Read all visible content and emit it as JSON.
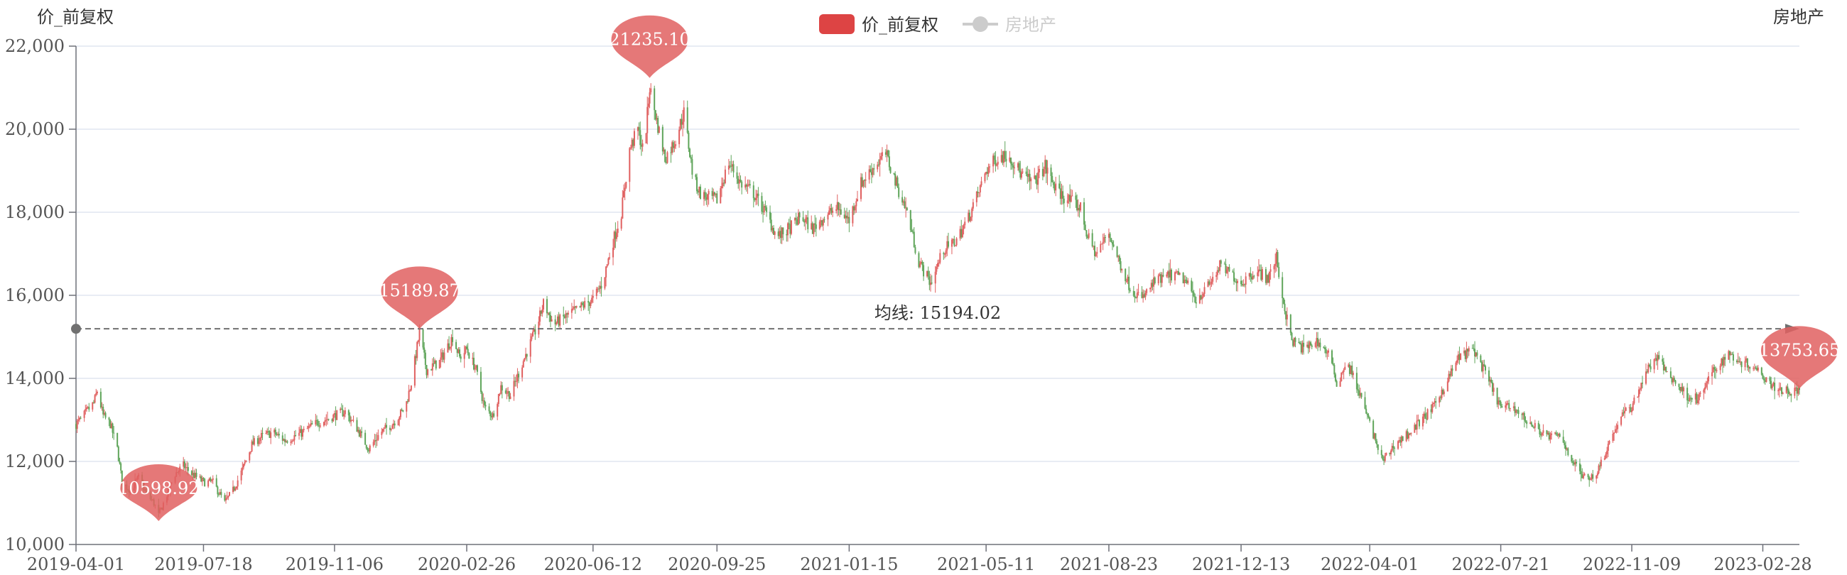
{
  "chart_data": {
    "type": "candlestick",
    "y_axis_name": "价_前复权",
    "x_axis_name": "房地产",
    "ylim": [
      10000,
      22000
    ],
    "y_ticks": [
      10000,
      12000,
      14000,
      16000,
      18000,
      20000,
      22000
    ],
    "x_range": [
      "2019-04-01",
      "2023-03-31"
    ],
    "x_ticks": [
      "2019-04-01",
      "2019-07-18",
      "2019-11-06",
      "2020-02-26",
      "2020-06-12",
      "2020-09-25",
      "2021-01-15",
      "2021-05-11",
      "2021-08-23",
      "2021-12-13",
      "2022-04-01",
      "2022-07-21",
      "2022-11-09",
      "2023-02-28"
    ],
    "grid": true,
    "legend": {
      "position": "top-center",
      "items": [
        {
          "name": "价_前复权",
          "color": "#dd4444",
          "active": true
        },
        {
          "name": "房地产",
          "color": "#cccccc",
          "active": false
        }
      ]
    },
    "colors": {
      "up": "#e06060",
      "down": "#5fa55a"
    },
    "average_line": {
      "value": 15194.02,
      "label": "均线: 15194.02"
    },
    "mark_points": [
      {
        "label": "10598.92",
        "date": "2019-06-10",
        "value": 10598.92,
        "type": "min"
      },
      {
        "label": "15189.87",
        "date": "2020-01-17",
        "value": 15189.87,
        "type": "local-max"
      },
      {
        "label": "21235.10",
        "date": "2020-07-30",
        "value": 21235.1,
        "type": "max"
      },
      {
        "label": "13753.65",
        "date": "2023-03-31",
        "value": 13753.65,
        "type": "last"
      }
    ],
    "series_anchors": [
      [
        "2019-04-01",
        12900
      ],
      [
        "2019-04-05",
        13000
      ],
      [
        "2019-04-10",
        13200
      ],
      [
        "2019-04-16",
        13400
      ],
      [
        "2019-04-19",
        13700
      ],
      [
        "2019-04-24",
        13100
      ],
      [
        "2019-04-30",
        12900
      ],
      [
        "2019-05-06",
        12300
      ],
      [
        "2019-05-10",
        11500
      ],
      [
        "2019-05-17",
        11300
      ],
      [
        "2019-05-24",
        11600
      ],
      [
        "2019-05-31",
        11200
      ],
      [
        "2019-06-06",
        11000
      ],
      [
        "2019-06-10",
        10700
      ],
      [
        "2019-06-17",
        11200
      ],
      [
        "2019-06-24",
        11700
      ],
      [
        "2019-07-01",
        11900
      ],
      [
        "2019-07-08",
        11700
      ],
      [
        "2019-07-18",
        11500
      ],
      [
        "2019-07-26",
        11500
      ],
      [
        "2019-08-05",
        11000
      ],
      [
        "2019-08-12",
        11300
      ],
      [
        "2019-08-20",
        11800
      ],
      [
        "2019-08-28",
        12400
      ],
      [
        "2019-09-05",
        12600
      ],
      [
        "2019-09-15",
        12700
      ],
      [
        "2019-09-25",
        12500
      ],
      [
        "2019-10-10",
        12700
      ],
      [
        "2019-10-20",
        12900
      ],
      [
        "2019-11-06",
        13100
      ],
      [
        "2019-11-15",
        13200
      ],
      [
        "2019-11-25",
        12800
      ],
      [
        "2019-12-05",
        12300
      ],
      [
        "2019-12-15",
        12700
      ],
      [
        "2019-12-25",
        12900
      ],
      [
        "2020-01-05",
        13300
      ],
      [
        "2020-01-10",
        13900
      ],
      [
        "2020-01-17",
        15100
      ],
      [
        "2020-01-23",
        14200
      ],
      [
        "2020-02-03",
        14400
      ],
      [
        "2020-02-14",
        15000
      ],
      [
        "2020-02-20",
        14500
      ],
      [
        "2020-02-26",
        14700
      ],
      [
        "2020-03-05",
        14200
      ],
      [
        "2020-03-12",
        13300
      ],
      [
        "2020-03-19",
        13100
      ],
      [
        "2020-03-26",
        13800
      ],
      [
        "2020-04-03",
        13600
      ],
      [
        "2020-04-15",
        14500
      ],
      [
        "2020-04-25",
        15200
      ],
      [
        "2020-05-01",
        15800
      ],
      [
        "2020-05-10",
        15300
      ],
      [
        "2020-05-20",
        15500
      ],
      [
        "2020-06-01",
        15700
      ],
      [
        "2020-06-12",
        15900
      ],
      [
        "2020-06-20",
        16300
      ],
      [
        "2020-06-28",
        17200
      ],
      [
        "2020-07-06",
        18000
      ],
      [
        "2020-07-13",
        19500
      ],
      [
        "2020-07-20",
        20000
      ],
      [
        "2020-07-25",
        19400
      ],
      [
        "2020-07-30",
        21000
      ],
      [
        "2020-08-05",
        20200
      ],
      [
        "2020-08-12",
        19300
      ],
      [
        "2020-08-20",
        19700
      ],
      [
        "2020-08-28",
        20400
      ],
      [
        "2020-09-05",
        18800
      ],
      [
        "2020-09-12",
        18400
      ],
      [
        "2020-09-25",
        18300
      ],
      [
        "2020-10-05",
        19200
      ],
      [
        "2020-10-15",
        18700
      ],
      [
        "2020-10-25",
        18500
      ],
      [
        "2020-11-05",
        18000
      ],
      [
        "2020-11-15",
        17400
      ],
      [
        "2020-11-25",
        17600
      ],
      [
        "2020-12-05",
        17900
      ],
      [
        "2020-12-15",
        17600
      ],
      [
        "2020-12-25",
        17900
      ],
      [
        "2021-01-05",
        18100
      ],
      [
        "2021-01-15",
        17800
      ],
      [
        "2021-01-25",
        18700
      ],
      [
        "2021-02-05",
        19100
      ],
      [
        "2021-02-15",
        19400
      ],
      [
        "2021-02-25",
        18600
      ],
      [
        "2021-03-05",
        18000
      ],
      [
        "2021-03-15",
        16800
      ],
      [
        "2021-03-25",
        16300
      ],
      [
        "2021-04-05",
        17100
      ],
      [
        "2021-04-15",
        17300
      ],
      [
        "2021-04-25",
        17800
      ],
      [
        "2021-05-05",
        18500
      ],
      [
        "2021-05-11",
        19000
      ],
      [
        "2021-05-20",
        19300
      ],
      [
        "2021-05-30",
        19400
      ],
      [
        "2021-06-10",
        18900
      ],
      [
        "2021-06-20",
        18700
      ],
      [
        "2021-06-30",
        19100
      ],
      [
        "2021-07-10",
        18500
      ],
      [
        "2021-07-20",
        18300
      ],
      [
        "2021-07-30",
        18100
      ],
      [
        "2021-08-05",
        17400
      ],
      [
        "2021-08-12",
        17000
      ],
      [
        "2021-08-23",
        17500
      ],
      [
        "2021-09-01",
        16800
      ],
      [
        "2021-09-10",
        16200
      ],
      [
        "2021-09-20",
        15900
      ],
      [
        "2021-09-30",
        16300
      ],
      [
        "2021-10-15",
        16500
      ],
      [
        "2021-10-25",
        16400
      ],
      [
        "2021-11-05",
        15900
      ],
      [
        "2021-11-15",
        16200
      ],
      [
        "2021-11-25",
        16700
      ],
      [
        "2021-12-05",
        16500
      ],
      [
        "2021-12-13",
        16300
      ],
      [
        "2021-12-25",
        16600
      ],
      [
        "2022-01-05",
        16400
      ],
      [
        "2022-01-12",
        16900
      ],
      [
        "2022-01-18",
        15800
      ],
      [
        "2022-01-25",
        14900
      ],
      [
        "2022-02-05",
        14700
      ],
      [
        "2022-02-15",
        14900
      ],
      [
        "2022-02-25",
        14600
      ],
      [
        "2022-03-05",
        13800
      ],
      [
        "2022-03-10",
        14300
      ],
      [
        "2022-03-16",
        14200
      ],
      [
        "2022-03-25",
        13500
      ],
      [
        "2022-04-01",
        12900
      ],
      [
        "2022-04-12",
        12000
      ],
      [
        "2022-04-22",
        12400
      ],
      [
        "2022-05-05",
        12700
      ],
      [
        "2022-05-15",
        13000
      ],
      [
        "2022-05-25",
        13300
      ],
      [
        "2022-06-05",
        13900
      ],
      [
        "2022-06-15",
        14500
      ],
      [
        "2022-06-28",
        14700
      ],
      [
        "2022-07-10",
        14000
      ],
      [
        "2022-07-21",
        13300
      ],
      [
        "2022-08-01",
        13300
      ],
      [
        "2022-08-15",
        12900
      ],
      [
        "2022-08-30",
        12600
      ],
      [
        "2022-09-10",
        12600
      ],
      [
        "2022-09-20",
        12000
      ],
      [
        "2022-09-30",
        11600
      ],
      [
        "2022-10-10",
        11700
      ],
      [
        "2022-10-20",
        12400
      ],
      [
        "2022-10-31",
        13100
      ],
      [
        "2022-11-09",
        13300
      ],
      [
        "2022-11-20",
        14100
      ],
      [
        "2022-11-30",
        14500
      ],
      [
        "2022-12-10",
        14100
      ],
      [
        "2022-12-25",
        13600
      ],
      [
        "2023-01-05",
        13500
      ],
      [
        "2023-01-15",
        14100
      ],
      [
        "2023-01-30",
        14600
      ],
      [
        "2023-02-10",
        14400
      ],
      [
        "2023-02-20",
        14300
      ],
      [
        "2023-02-28",
        14100
      ],
      [
        "2023-03-10",
        13800
      ],
      [
        "2023-03-20",
        13700
      ],
      [
        "2023-03-31",
        13700
      ]
    ]
  }
}
